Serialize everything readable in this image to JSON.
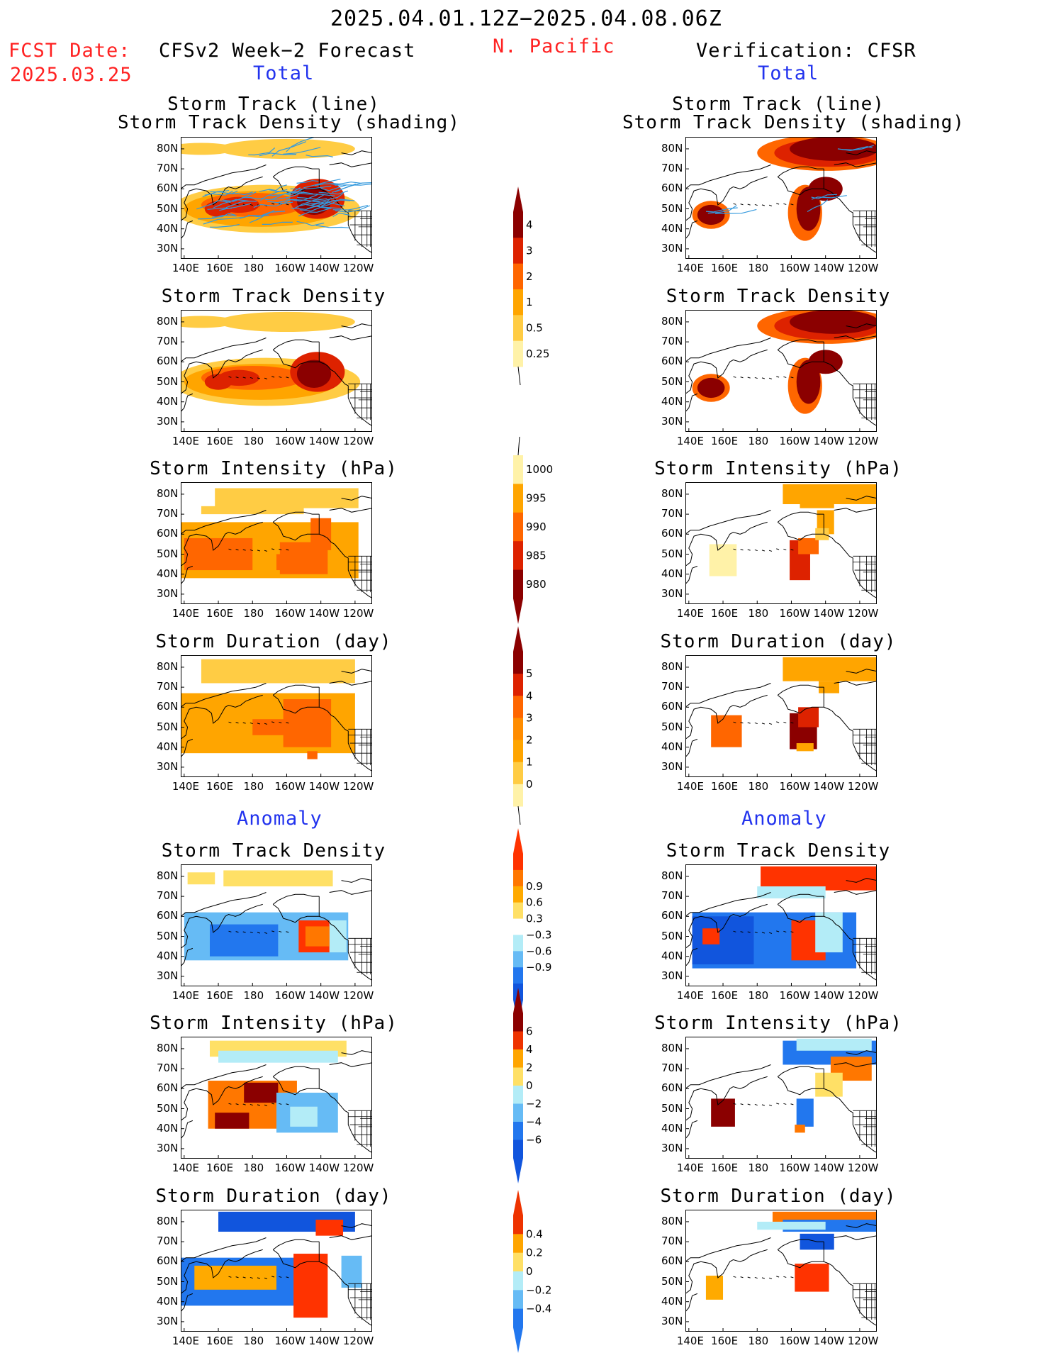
{
  "header": {
    "period": "2025.04.01.12Z−2025.04.08.06Z",
    "region": "N. Pacific",
    "fcst_label": "FCST Date:",
    "fcst_date": "2025.03.25",
    "left_title": "CFSv2 Week−2 Forecast",
    "right_title": "Verification: CFSR",
    "total_label": "Total",
    "anomaly_label": "Anomaly"
  },
  "axes": {
    "lat_labels": [
      "80N",
      "70N",
      "60N",
      "50N",
      "40N",
      "30N"
    ],
    "lon_labels": [
      "140E",
      "160E",
      "180",
      "160W",
      "140W",
      "120W"
    ]
  },
  "rows": [
    {
      "title1": "Storm Track (line)",
      "title2": "Storm Track Density (shading)"
    },
    {
      "title1": "Storm Track Density"
    },
    {
      "title1": "Storm Intensity (hPa)"
    },
    {
      "title1": "Storm Duration (day)"
    },
    {
      "title1": "Storm Track Density"
    },
    {
      "title1": "Storm Intensity (hPa)"
    },
    {
      "title1": "Storm Duration (day)"
    }
  ],
  "colorbars": [
    {
      "name": "density-total",
      "labels": [
        "4",
        "3",
        "2",
        "1",
        "0.5",
        "0.25"
      ],
      "colors": [
        "#8b0000",
        "#dd2200",
        "#ff6600",
        "#ffa500",
        "#ffcc44",
        "#fff2a8"
      ]
    },
    {
      "name": "intensity-total",
      "labels": [
        "1000",
        "995",
        "990",
        "985",
        "980"
      ],
      "colors": [
        "#fff2a8",
        "#ffa500",
        "#ff6600",
        "#dd2200",
        "#8b0000"
      ]
    },
    {
      "name": "duration-total",
      "labels": [
        "5",
        "4",
        "3",
        "2",
        "1",
        "0"
      ],
      "colors": [
        "#8b0000",
        "#dd2200",
        "#ff6600",
        "#ff8c00",
        "#ffa500",
        "#ffcc44",
        "#fff2a8"
      ]
    },
    {
      "name": "density-anom",
      "labels": [
        "0.9",
        "0.6",
        "0.3",
        "−0.3",
        "−0.6",
        "−0.9"
      ],
      "colors": [
        "#ff3300",
        "#ff7700",
        "#ffaa00",
        "#ffe066",
        "#ffffff",
        "#b3ecf7",
        "#66bbf5",
        "#2277ee",
        "#1155dd"
      ]
    },
    {
      "name": "intensity-anom",
      "labels": [
        "6",
        "4",
        "2",
        "0",
        "−2",
        "−4",
        "−6"
      ],
      "colors": [
        "#8b0000",
        "#ee3300",
        "#ffa500",
        "#ffe066",
        "#b3ecf7",
        "#66bbf5",
        "#2277ee",
        "#1155dd"
      ]
    },
    {
      "name": "duration-anom",
      "labels": [
        "0.4",
        "0.2",
        "0",
        "−0.2",
        "−0.4"
      ],
      "colors": [
        "#ee3300",
        "#ffa500",
        "#ffe066",
        "#b3ecf7",
        "#66bbf5",
        "#2277ee"
      ]
    }
  ]
}
